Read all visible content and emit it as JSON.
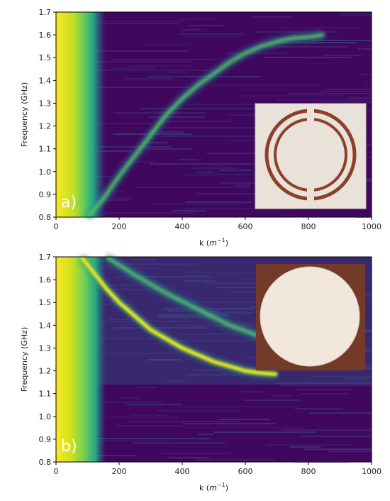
{
  "chart_data": [
    {
      "type": "heatmap",
      "panel_label": "a)",
      "title": "",
      "xlabel_text": "k (",
      "xlabel_unit": "m",
      "xlabel_exp": "−1",
      "xlabel_close": ")",
      "ylabel": "Frequency (GHz)",
      "xlim": [
        0,
        1000
      ],
      "ylim": [
        0.8,
        1.7
      ],
      "x_ticks": [
        "0",
        "200",
        "400",
        "600",
        "800",
        "1000"
      ],
      "y_ticks": [
        "0.8",
        "0.9",
        "1.0",
        "1.1",
        "1.2",
        "1.3",
        "1.4",
        "1.5",
        "1.6",
        "1.7"
      ],
      "colormap": "viridis",
      "grid": false,
      "ridges": [
        {
          "name": "dispersion-band",
          "points": [
            [
              100,
              0.8
            ],
            [
              150,
              0.88
            ],
            [
              200,
              0.98
            ],
            [
              250,
              1.07
            ],
            [
              300,
              1.16
            ],
            [
              350,
              1.25
            ],
            [
              400,
              1.32
            ],
            [
              450,
              1.38
            ],
            [
              500,
              1.43
            ],
            [
              550,
              1.48
            ],
            [
              600,
              1.52
            ],
            [
              650,
              1.55
            ],
            [
              700,
              1.57
            ],
            [
              750,
              1.585
            ],
            [
              800,
              1.59
            ],
            [
              850,
              1.6
            ]
          ]
        }
      ],
      "inset": {
        "description_color_bg": "#e7e1d6",
        "ring_color": "#8c3f2b"
      }
    },
    {
      "type": "heatmap",
      "panel_label": "b)",
      "title": "",
      "xlabel_text": "k (",
      "xlabel_unit": "m",
      "xlabel_exp": "−1",
      "xlabel_close": ")",
      "ylabel": "Frequency (GHz)",
      "xlim": [
        0,
        1000
      ],
      "ylim": [
        0.8,
        1.7
      ],
      "x_ticks": [
        "0",
        "200",
        "400",
        "600",
        "800",
        "1000"
      ],
      "y_ticks": [
        "0.8",
        "0.9",
        "1.0",
        "1.1",
        "1.2",
        "1.3",
        "1.4",
        "1.5",
        "1.6",
        "1.7"
      ],
      "colormap": "viridis",
      "grid": false,
      "ridges": [
        {
          "name": "main-band",
          "points": [
            [
              80,
              1.7
            ],
            [
              120,
              1.63
            ],
            [
              160,
              1.56
            ],
            [
              200,
              1.5
            ],
            [
              250,
              1.44
            ],
            [
              300,
              1.38
            ],
            [
              350,
              1.34
            ],
            [
              400,
              1.3
            ],
            [
              450,
              1.27
            ],
            [
              500,
              1.24
            ],
            [
              550,
              1.22
            ],
            [
              600,
              1.2
            ],
            [
              650,
              1.19
            ],
            [
              700,
              1.185
            ]
          ]
        },
        {
          "name": "upper-band",
          "points": [
            [
              160,
              1.7
            ],
            [
              250,
              1.62
            ],
            [
              350,
              1.54
            ],
            [
              450,
              1.47
            ],
            [
              550,
              1.4
            ],
            [
              650,
              1.35
            ],
            [
              750,
              1.31
            ],
            [
              850,
              1.28
            ],
            [
              950,
              1.26
            ]
          ]
        },
        {
          "name": "flat-band",
          "points": [
            [
              150,
              1.14
            ],
            [
              400,
              1.14
            ],
            [
              700,
              1.14
            ],
            [
              1000,
              1.14
            ]
          ]
        }
      ],
      "inset": {
        "description_color_bg": "#7a3e2c",
        "disc_color": "#f1e7dc"
      }
    }
  ]
}
